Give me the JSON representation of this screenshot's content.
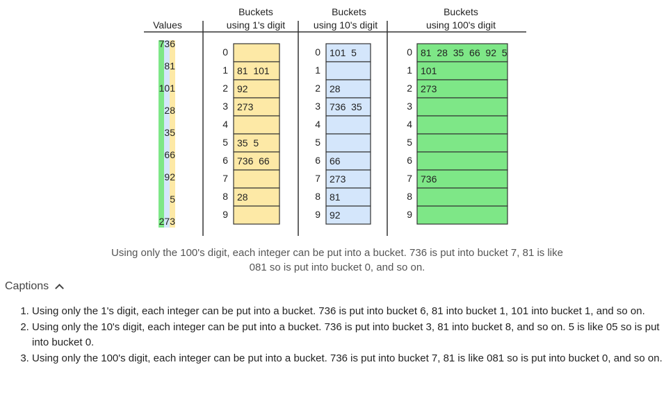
{
  "headers": {
    "values": "Values",
    "ones": [
      "Buckets",
      "using 1's digit"
    ],
    "tens": [
      "Buckets",
      "using 10's digit"
    ],
    "hundreds": [
      "Buckets",
      "using 100's digit"
    ]
  },
  "values": [
    "736",
    "81",
    "101",
    "28",
    "35",
    "66",
    "92",
    "5",
    "273"
  ],
  "bucket_indices": [
    "0",
    "1",
    "2",
    "3",
    "4",
    "5",
    "6",
    "7",
    "8",
    "9"
  ],
  "ones_buckets": [
    "",
    "81  101",
    "92",
    "273",
    "",
    "35  5",
    "736  66",
    "",
    "28",
    ""
  ],
  "tens_buckets": [
    "101  5",
    "",
    "28",
    "736  35",
    "",
    "",
    "66",
    "273",
    "81",
    "92"
  ],
  "hundreds_buckets": [
    "81  28  35  66  92  5",
    "101",
    "273",
    "",
    "",
    "",
    "",
    "736",
    "",
    ""
  ],
  "colors": {
    "ones_fill": "#fde9a6",
    "tens_fill": "#d4e6fb",
    "hundreds_fill": "#7ee787",
    "value_bar_green": "#7ee787",
    "value_bar_yellow": "#fde9a6",
    "value_bar_blue": "#d4e6fb"
  },
  "caption_main": "Using only the 100's digit, each integer can be put into a bucket. 736 is put into bucket 7, 81 is like 081 so is put into bucket 0, and so on.",
  "captions_toggle": "Captions",
  "captions": [
    "Using only the 1's digit, each integer can be put into a bucket. 736 is put into bucket 6, 81 into bucket 1, 101 into bucket 1, and so on.",
    "Using only the 10's digit, each integer can be put into a bucket. 736 is put into bucket 3, 81 into bucket 8, and so on. 5 is like 05 so is put into bucket 0.",
    "Using only the 100's digit, each integer can be put into a bucket. 736 is put into bucket 7, 81 is like 081 so is put into bucket 0, and so on."
  ]
}
